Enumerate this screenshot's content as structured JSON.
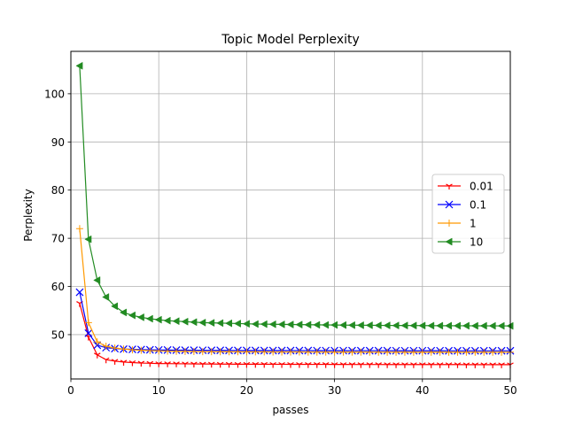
{
  "chart_data": {
    "type": "line",
    "title": "Topic Model Perplexity",
    "xlabel": "passes",
    "ylabel": "Perplexity",
    "xlim": [
      0,
      50
    ],
    "ylim": [
      40.8,
      108.8
    ],
    "xticks": [
      0,
      10,
      20,
      30,
      40,
      50
    ],
    "yticks": [
      50,
      60,
      70,
      80,
      90,
      100
    ],
    "grid": true,
    "legend_position": "right",
    "x": [
      1,
      2,
      3,
      4,
      5,
      6,
      7,
      8,
      9,
      10,
      11,
      12,
      13,
      14,
      15,
      16,
      17,
      18,
      19,
      20,
      21,
      22,
      23,
      24,
      25,
      26,
      27,
      28,
      29,
      30,
      31,
      32,
      33,
      34,
      35,
      36,
      37,
      38,
      39,
      40,
      41,
      42,
      43,
      44,
      45,
      46,
      47,
      48,
      49,
      50
    ],
    "series": [
      {
        "name": "0.01",
        "color": "#ff0000",
        "marker": "tri_down",
        "values": [
          56.5,
          49.5,
          45.8,
          44.8,
          44.5,
          44.3,
          44.2,
          44.1,
          44.05,
          44.0,
          43.98,
          43.96,
          43.94,
          43.92,
          43.9,
          43.9,
          43.88,
          43.88,
          43.86,
          43.86,
          43.85,
          43.85,
          43.84,
          43.84,
          43.83,
          43.83,
          43.82,
          43.82,
          43.82,
          43.81,
          43.81,
          43.8,
          43.8,
          43.8,
          43.8,
          43.79,
          43.79,
          43.79,
          43.79,
          43.78,
          43.78,
          43.78,
          43.78,
          43.78,
          43.77,
          43.77,
          43.77,
          43.77,
          43.77,
          43.77
        ]
      },
      {
        "name": "0.1",
        "color": "#0000ff",
        "marker": "x",
        "values": [
          58.8,
          50.3,
          47.8,
          47.3,
          47.1,
          47.0,
          46.95,
          46.9,
          46.85,
          46.82,
          46.8,
          46.78,
          46.77,
          46.76,
          46.75,
          46.74,
          46.73,
          46.72,
          46.72,
          46.71,
          46.71,
          46.7,
          46.7,
          46.7,
          46.69,
          46.69,
          46.69,
          46.68,
          46.68,
          46.68,
          46.68,
          46.67,
          46.67,
          46.67,
          46.67,
          46.67,
          46.66,
          46.66,
          46.66,
          46.66,
          46.66,
          46.66,
          46.65,
          46.65,
          46.65,
          46.65,
          46.65,
          46.65,
          46.65,
          46.65
        ]
      },
      {
        "name": "1",
        "color": "#ff9900",
        "marker": "plus",
        "values": [
          72.0,
          52.5,
          48.5,
          47.6,
          47.2,
          47.0,
          46.85,
          46.75,
          46.68,
          46.62,
          46.58,
          46.55,
          46.52,
          46.5,
          46.48,
          46.47,
          46.46,
          46.45,
          46.44,
          46.43,
          46.42,
          46.42,
          46.41,
          46.41,
          46.4,
          46.4,
          46.39,
          46.39,
          46.39,
          46.38,
          46.38,
          46.38,
          46.38,
          46.37,
          46.37,
          46.37,
          46.37,
          46.37,
          46.36,
          46.36,
          46.36,
          46.36,
          46.36,
          46.36,
          46.36,
          46.35,
          46.35,
          46.35,
          46.35,
          46.35
        ]
      },
      {
        "name": "10",
        "color": "#228b22",
        "marker": "triangle_left",
        "values": [
          105.8,
          69.8,
          61.3,
          57.8,
          55.9,
          54.6,
          54.0,
          53.6,
          53.3,
          53.1,
          52.9,
          52.8,
          52.7,
          52.6,
          52.5,
          52.45,
          52.4,
          52.35,
          52.3,
          52.25,
          52.2,
          52.18,
          52.15,
          52.12,
          52.1,
          52.08,
          52.05,
          52.03,
          52.01,
          52.0,
          51.98,
          51.96,
          51.95,
          51.94,
          51.92,
          51.91,
          51.9,
          51.89,
          51.88,
          51.87,
          51.86,
          51.85,
          51.85,
          51.84,
          51.84,
          51.83,
          51.83,
          51.82,
          51.82,
          51.81
        ]
      }
    ]
  }
}
